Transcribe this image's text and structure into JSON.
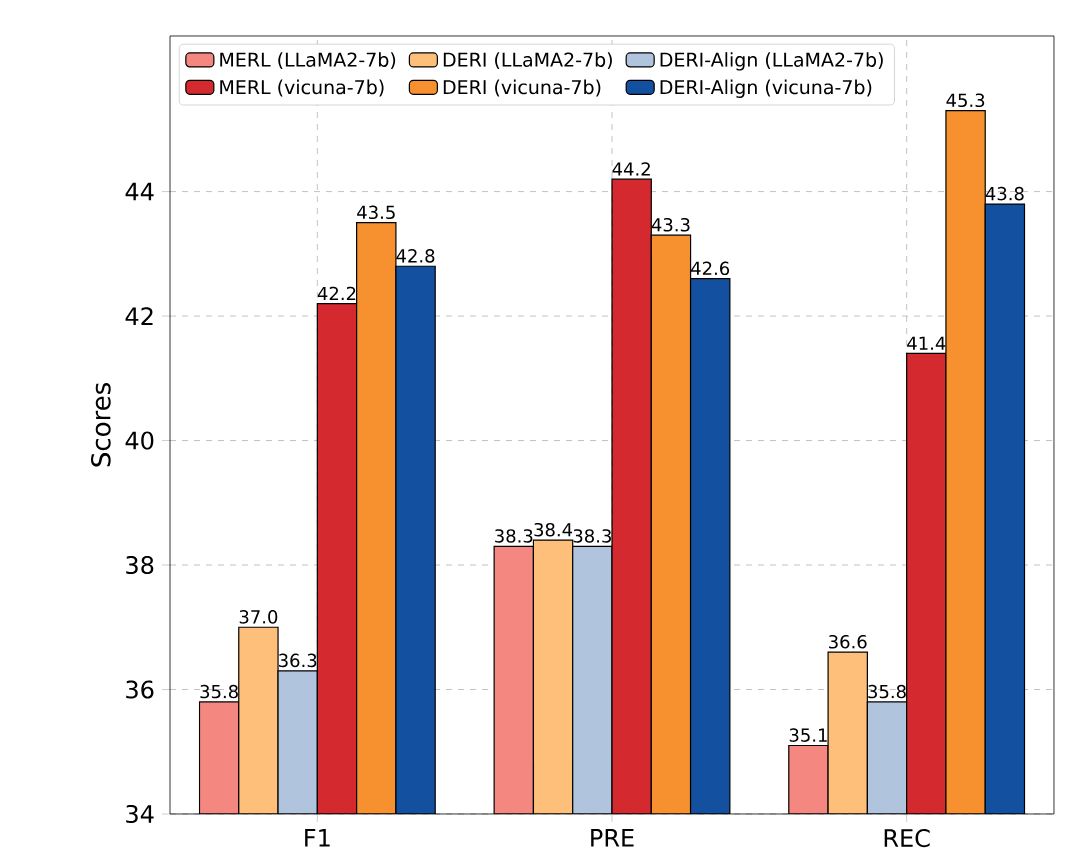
{
  "chart_data": {
    "type": "bar",
    "ylabel": "Scores",
    "categories": [
      "F1",
      "PRE",
      "REC"
    ],
    "series": [
      {
        "name": "MERL (LLaMA2-7b)",
        "color": "#f4877f",
        "values": [
          35.8,
          38.3,
          35.1
        ],
        "value_labels": [
          "35.8",
          "38.3",
          "35.1"
        ]
      },
      {
        "name": "DERI (LLaMA2-7b)",
        "color": "#fdbf7a",
        "values": [
          37.0,
          38.4,
          36.6
        ],
        "value_labels": [
          "37.0",
          "38.4",
          "36.6"
        ]
      },
      {
        "name": "DERI-Align (LLaMA2-7b)",
        "color": "#b0c4de",
        "values": [
          36.3,
          38.3,
          35.8
        ],
        "value_labels": [
          "36.3",
          "38.3",
          "35.8"
        ]
      },
      {
        "name": "MERL (vicuna-7b)",
        "color": "#d42a2f",
        "values": [
          42.2,
          44.2,
          41.4
        ],
        "value_labels": [
          "42.2",
          "44.2",
          "41.4"
        ]
      },
      {
        "name": "DERI (vicuna-7b)",
        "color": "#f7912f",
        "values": [
          43.5,
          43.3,
          45.3
        ],
        "value_labels": [
          "43.5",
          "43.3",
          "45.3"
        ]
      },
      {
        "name": "DERI-Align (vicuna-7b)",
        "color": "#1450a0",
        "values": [
          42.8,
          42.6,
          43.8
        ],
        "value_labels": [
          "42.8",
          "42.6",
          "43.8"
        ]
      }
    ],
    "ylim": [
      34,
      46.5
    ],
    "yticks": [
      34,
      36,
      38,
      40,
      42,
      44
    ],
    "grid": true,
    "legend": "top left"
  }
}
